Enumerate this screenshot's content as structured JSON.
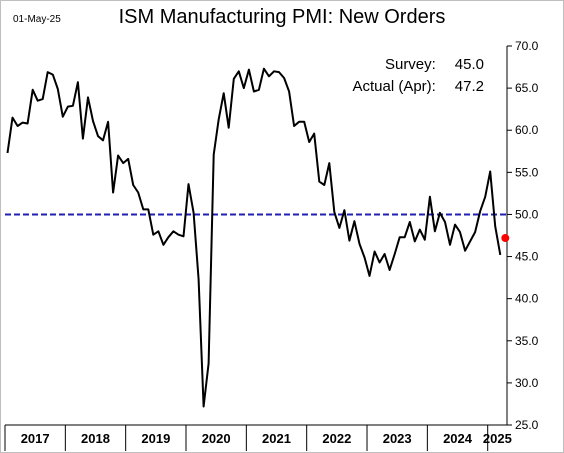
{
  "date_label": "01-May-25",
  "chart_data": {
    "type": "line",
    "title": "ISM Manufacturing PMI: New Orders",
    "xlabel": "",
    "ylabel": "",
    "ylim": [
      25,
      70
    ],
    "yticks": [
      "25.0",
      "30.0",
      "35.0",
      "40.0",
      "45.0",
      "50.0",
      "55.0",
      "60.0",
      "65.0",
      "70.0"
    ],
    "xtick_labels": [
      "2017",
      "2018",
      "2019",
      "2020",
      "2021",
      "2022",
      "2023",
      "2024",
      "2025"
    ],
    "reference_line": {
      "value": 50,
      "color": "#1f1fb4",
      "style": "dashed"
    },
    "series": [
      {
        "color": "#000000",
        "x": [
          "2017-01",
          "2017-02",
          "2017-03",
          "2017-04",
          "2017-05",
          "2017-06",
          "2017-07",
          "2017-08",
          "2017-09",
          "2017-10",
          "2017-11",
          "2017-12",
          "2018-01",
          "2018-02",
          "2018-03",
          "2018-04",
          "2018-05",
          "2018-06",
          "2018-07",
          "2018-08",
          "2018-09",
          "2018-10",
          "2018-11",
          "2018-12",
          "2019-01",
          "2019-02",
          "2019-03",
          "2019-04",
          "2019-05",
          "2019-06",
          "2019-07",
          "2019-08",
          "2019-09",
          "2019-10",
          "2019-11",
          "2019-12",
          "2020-01",
          "2020-02",
          "2020-03",
          "2020-04",
          "2020-05",
          "2020-06",
          "2020-07",
          "2020-08",
          "2020-09",
          "2020-10",
          "2020-11",
          "2020-12",
          "2021-01",
          "2021-02",
          "2021-03",
          "2021-04",
          "2021-05",
          "2021-06",
          "2021-07",
          "2021-08",
          "2021-09",
          "2021-10",
          "2021-11",
          "2021-12",
          "2022-01",
          "2022-02",
          "2022-03",
          "2022-04",
          "2022-05",
          "2022-06",
          "2022-07",
          "2022-08",
          "2022-09",
          "2022-10",
          "2022-11",
          "2022-12",
          "2023-01",
          "2023-02",
          "2023-03",
          "2023-04",
          "2023-05",
          "2023-06",
          "2023-07",
          "2023-08",
          "2023-09",
          "2023-10",
          "2023-11",
          "2023-12",
          "2024-01",
          "2024-02",
          "2024-03",
          "2024-04",
          "2024-05",
          "2024-06",
          "2024-07",
          "2024-08",
          "2024-09",
          "2024-10",
          "2024-11",
          "2024-12",
          "2025-01",
          "2025-02",
          "2025-03"
        ],
        "values": [
          57.3,
          61.5,
          60.5,
          60.9,
          60.8,
          64.8,
          63.5,
          63.7,
          66.9,
          66.6,
          64.9,
          61.6,
          62.8,
          62.9,
          65.7,
          59.0,
          63.9,
          61.1,
          59.3,
          58.8,
          61.0,
          52.6,
          57.0,
          56.1,
          56.6,
          53.5,
          52.6,
          50.6,
          50.6,
          47.6,
          48.0,
          46.4,
          47.3,
          48.0,
          47.6,
          47.4,
          53.6,
          50.2,
          42.3,
          27.2,
          32.3,
          57.1,
          61.3,
          64.4,
          60.3,
          66.1,
          67.0,
          65.0,
          67.2,
          64.6,
          64.8,
          67.3,
          66.4,
          67.0,
          66.9,
          66.2,
          64.6,
          60.5,
          61.0,
          61.0,
          58.6,
          59.6,
          53.9,
          53.5,
          56.1,
          50.3,
          48.4,
          50.5,
          46.9,
          49.2,
          46.5,
          44.9,
          42.7,
          45.6,
          44.3,
          45.3,
          43.4,
          45.3,
          47.3,
          47.3,
          49.1,
          46.8,
          48.2,
          47.0,
          52.1,
          48.0,
          50.2,
          49.1,
          46.4,
          48.8,
          47.9,
          45.7,
          46.8,
          47.9,
          50.4,
          52.1,
          55.1,
          48.6,
          45.2
        ]
      }
    ],
    "actual": {
      "x": "2025-04",
      "value": 47.2,
      "color": "#ff0000"
    }
  },
  "annotations": {
    "survey_label": "Survey:",
    "survey_value": "45.0",
    "actual_label": "Actual (Apr):",
    "actual_value": "47.2"
  }
}
